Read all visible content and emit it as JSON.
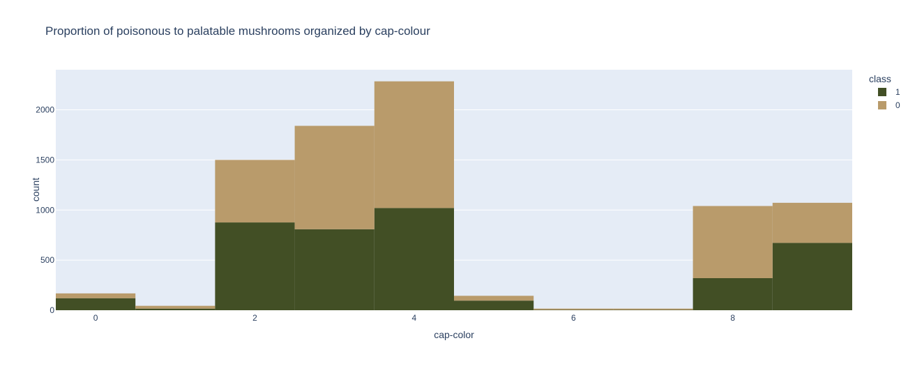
{
  "chart_data": {
    "type": "bar",
    "barmode": "stack",
    "title": "Proportion of poisonous to palatable mushrooms organized by cap-colour",
    "xlabel": "cap-color",
    "ylabel": "count",
    "categories": [
      0,
      1,
      2,
      3,
      4,
      5,
      6,
      7,
      8,
      9
    ],
    "x_ticks": [
      0,
      2,
      4,
      6,
      8
    ],
    "y_ticks": [
      0,
      500,
      1000,
      1500,
      2000
    ],
    "xlim": [
      -0.5,
      9.5
    ],
    "ylim": [
      0,
      2400
    ],
    "grid": true,
    "legend_title": "class",
    "legend_position": "top-right",
    "series": [
      {
        "name": "1",
        "color": "#424f25",
        "values": [
          120,
          16,
          876,
          808,
          1020,
          96,
          4,
          4,
          320,
          672
        ]
      },
      {
        "name": "0",
        "color": "#b99b6b",
        "values": [
          48,
          28,
          624,
          1032,
          1264,
          48,
          12,
          12,
          720,
          400
        ]
      }
    ],
    "plot_bg": "#e5ecf6",
    "grid_color": "#ffffff"
  }
}
